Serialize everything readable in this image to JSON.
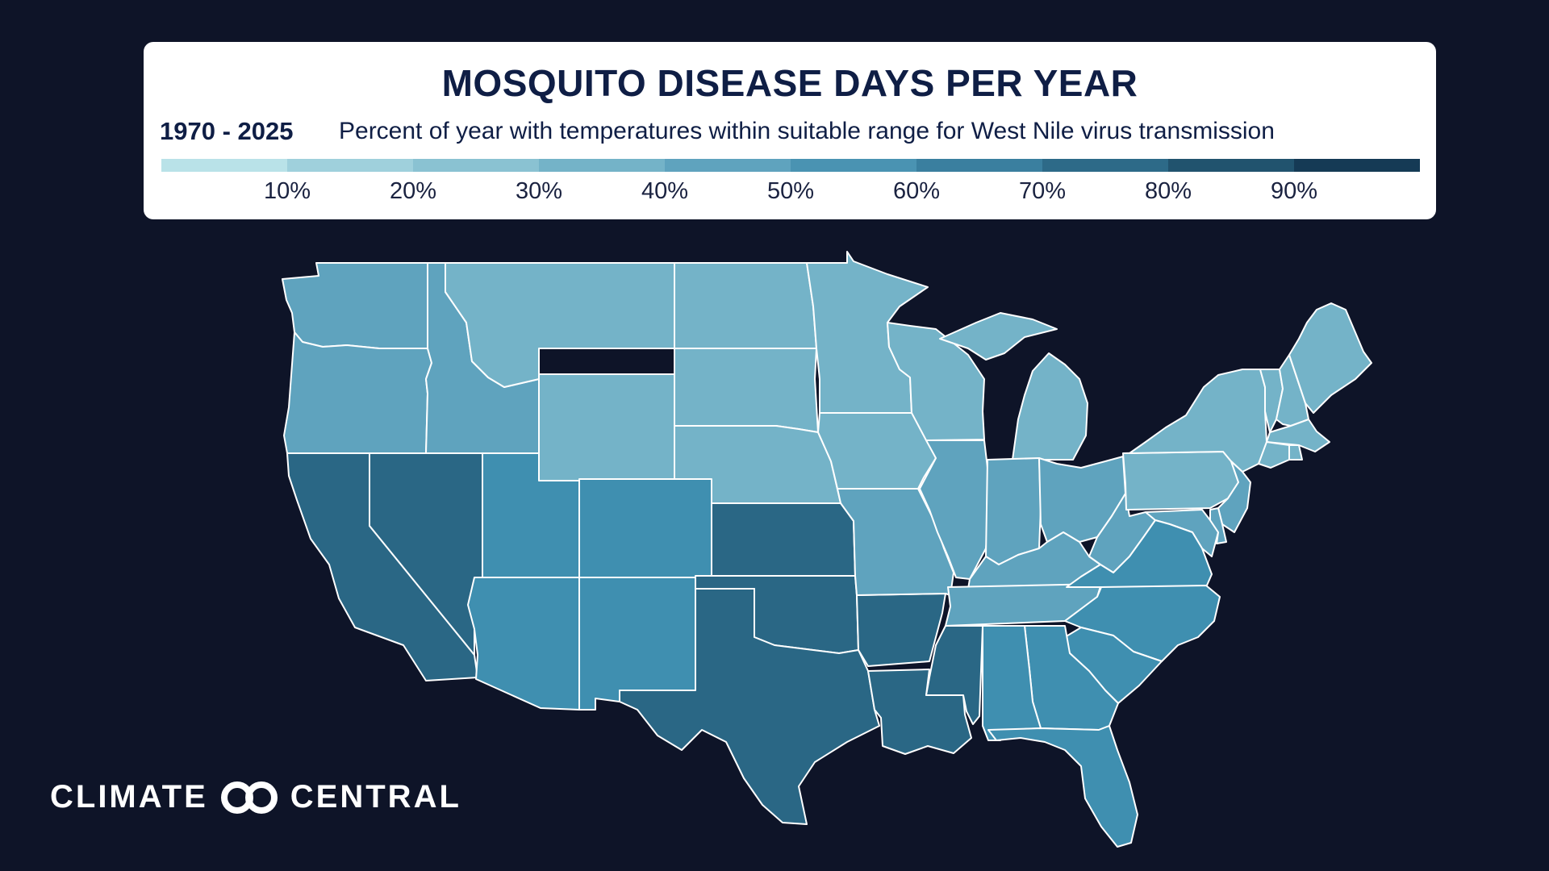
{
  "title": "MOSQUITO DISEASE DAYS PER YEAR",
  "years": "1970 - 2025",
  "subtitle": "Percent of year with temperatures within suitable range for West Nile virus transmission",
  "legend": {
    "colors": [
      "#b9e2e8",
      "#9fd0dc",
      "#8ac2d2",
      "#74b3c8",
      "#5fa3be",
      "#4a93b2",
      "#3a7f9f",
      "#2d6a88",
      "#21536e",
      "#153a55"
    ],
    "labels": [
      "10%",
      "20%",
      "30%",
      "40%",
      "50%",
      "60%",
      "70%",
      "80%",
      "90%"
    ]
  },
  "map": {
    "level_colors": {
      "40": "#74b3c8",
      "50": "#5fa3be",
      "60": "#3f8fb0",
      "70": "#2a6785"
    },
    "states": [
      {
        "name": "Washington",
        "level": 50
      },
      {
        "name": "Oregon",
        "level": 50
      },
      {
        "name": "Idaho",
        "level": 50
      },
      {
        "name": "California",
        "level": 70
      },
      {
        "name": "Nevada",
        "level": 70
      },
      {
        "name": "Montana",
        "level": 40
      },
      {
        "name": "Wyoming",
        "level": 40
      },
      {
        "name": "North Dakota",
        "level": 40
      },
      {
        "name": "South Dakota",
        "level": 40
      },
      {
        "name": "Nebraska",
        "level": 40
      },
      {
        "name": "Minnesota",
        "level": 40
      },
      {
        "name": "Iowa",
        "level": 40
      },
      {
        "name": "Wisconsin",
        "level": 40
      },
      {
        "name": "Michigan",
        "level": 40
      },
      {
        "name": "Utah",
        "level": 60
      },
      {
        "name": "Colorado",
        "level": 60
      },
      {
        "name": "Arizona",
        "level": 60
      },
      {
        "name": "New Mexico",
        "level": 60
      },
      {
        "name": "Kansas",
        "level": 70
      },
      {
        "name": "Oklahoma",
        "level": 70
      },
      {
        "name": "Texas",
        "level": 70
      },
      {
        "name": "Arkansas",
        "level": 70
      },
      {
        "name": "Louisiana",
        "level": 70
      },
      {
        "name": "Mississippi",
        "level": 70
      },
      {
        "name": "Missouri",
        "level": 50
      },
      {
        "name": "Illinois",
        "level": 50
      },
      {
        "name": "Indiana",
        "level": 50
      },
      {
        "name": "Ohio",
        "level": 50
      },
      {
        "name": "Kentucky",
        "level": 50
      },
      {
        "name": "Tennessee",
        "level": 50
      },
      {
        "name": "West Virginia",
        "level": 50
      },
      {
        "name": "Pennsylvania",
        "level": 40
      },
      {
        "name": "New York",
        "level": 40
      },
      {
        "name": "Vermont",
        "level": 40
      },
      {
        "name": "New Hampshire",
        "level": 40
      },
      {
        "name": "Maine",
        "level": 40
      },
      {
        "name": "Massachusetts",
        "level": 40
      },
      {
        "name": "Connecticut",
        "level": 40
      },
      {
        "name": "Rhode Island",
        "level": 40
      },
      {
        "name": "New Jersey",
        "level": 50
      },
      {
        "name": "Maryland",
        "level": 50
      },
      {
        "name": "Delaware",
        "level": 50
      },
      {
        "name": "Virginia",
        "level": 60
      },
      {
        "name": "North Carolina",
        "level": 60
      },
      {
        "name": "South Carolina",
        "level": 60
      },
      {
        "name": "Georgia",
        "level": 60
      },
      {
        "name": "Alabama",
        "level": 60
      },
      {
        "name": "Florida",
        "level": 60
      }
    ]
  },
  "logo": {
    "left_text": "CLIMATE",
    "right_text": "CENTRAL",
    "icon": "interlocking-rings-icon"
  }
}
